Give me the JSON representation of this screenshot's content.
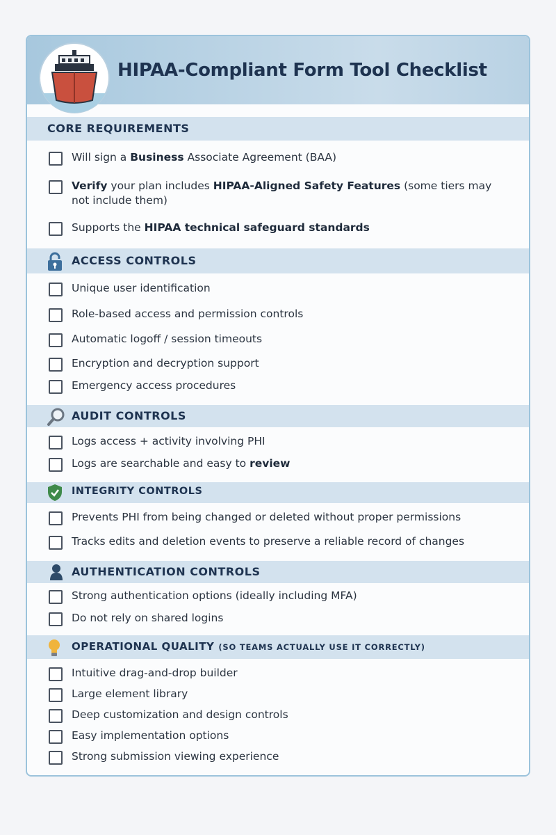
{
  "header": {
    "title": "HIPAA-Compliant Form Tool Checklist"
  },
  "sections": [
    {
      "title": "CORE REQUIREMENTS",
      "items": [
        [
          {
            "text": "Will sign a ",
            "bold": false
          },
          {
            "text": "Business",
            "bold": true
          },
          {
            "text": " Associate Agreement (BAA)",
            "bold": false
          }
        ],
        [
          {
            "text": "Verify",
            "bold": true
          },
          {
            "text": " your plan includes ",
            "bold": false
          },
          {
            "text": "HIPAA-Aligned Safety Features",
            "bold": true
          },
          {
            "text": " (some tiers may not include them)",
            "bold": false
          }
        ],
        [
          {
            "text": "Supports the ",
            "bold": false
          },
          {
            "text": "HIPAA technical safeguard standards",
            "bold": true
          }
        ]
      ]
    },
    {
      "title": "ACCESS CONTROLS",
      "items": [
        [
          {
            "text": "Unique user identification",
            "bold": false
          }
        ],
        [
          {
            "text": "Role-based access and permission controls",
            "bold": false
          }
        ],
        [
          {
            "text": "Automatic logoff / session timeouts",
            "bold": false
          }
        ],
        [
          {
            "text": "Encryption and decryption support",
            "bold": false
          }
        ],
        [
          {
            "text": "Emergency access procedures",
            "bold": false
          }
        ]
      ]
    },
    {
      "title": "AUDIT CONTROLS",
      "items": [
        [
          {
            "text": "Logs access + activity involving PHI",
            "bold": false
          }
        ],
        [
          {
            "text": "Logs are searchable and easy to ",
            "bold": false
          },
          {
            "text": "review",
            "bold": true
          }
        ]
      ]
    },
    {
      "title": "INTEGRITY CONTROLS",
      "items": [
        [
          {
            "text": "Prevents PHI from being changed or deleted without proper permissions",
            "bold": false
          }
        ],
        [
          {
            "text": "Tracks edits and deletion events to preserve a reliable record of changes",
            "bold": false
          }
        ]
      ]
    },
    {
      "title": "AUTHENTICATION CONTROLS",
      "items": [
        [
          {
            "text": "Strong authentication options (ideally including MFA)",
            "bold": false
          }
        ],
        [
          {
            "text": "Do not rely on shared logins",
            "bold": false
          }
        ]
      ]
    },
    {
      "title": "OPERATIONAL QUALITY",
      "subtitle": "(SO TEAMS ACTUALLY USE IT CORRECTLY)",
      "items": [
        [
          {
            "text": "Intuitive drag-and-drop builder",
            "bold": false
          }
        ],
        [
          {
            "text": "Large element library",
            "bold": false
          }
        ],
        [
          {
            "text": "Deep customization and design controls",
            "bold": false
          }
        ],
        [
          {
            "text": "Easy implementation options",
            "bold": false
          }
        ],
        [
          {
            "text": "Strong submission viewing experience",
            "bold": false
          }
        ]
      ]
    }
  ]
}
